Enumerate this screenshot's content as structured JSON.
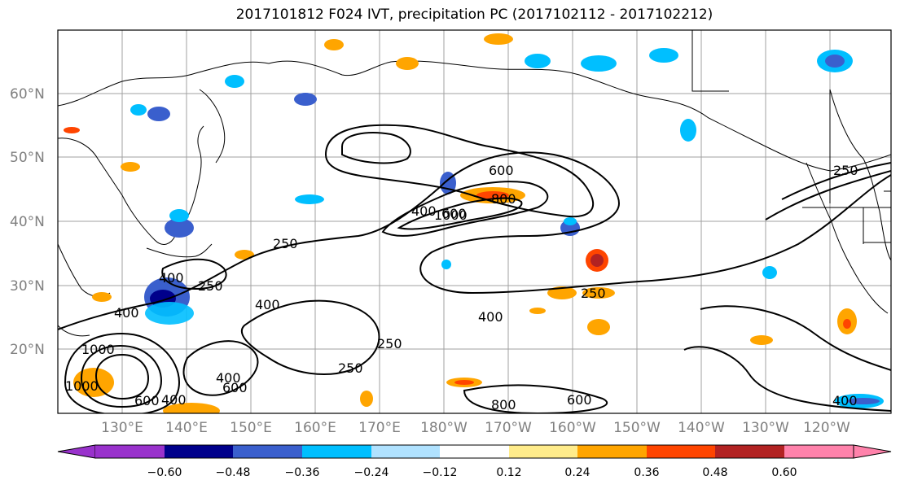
{
  "title": "2017101812 F024 IVT, precipitation PC (2017102112 - 2017102212)",
  "lat_labels": [
    "60°N",
    "50°N",
    "40°N",
    "30°N",
    "20°N"
  ],
  "lon_labels": [
    "130°E",
    "140°E",
    "150°E",
    "160°E",
    "170°E",
    "180°W",
    "170°W",
    "160°W",
    "150°W",
    "140°W",
    "130°W",
    "120°W"
  ],
  "colorbar": {
    "colors": [
      "#9932cc",
      "#00008b",
      "#3a5fcd",
      "#00bfff",
      "#b0e2ff",
      "#ffffff",
      "#ffec8b",
      "#ffa500",
      "#ff4500",
      "#b22222",
      "#ff82ab"
    ],
    "ticks": [
      "−0.60",
      "−0.48",
      "−0.36",
      "−0.24",
      "−0.12",
      "0.12",
      "0.24",
      "0.36",
      "0.48",
      "0.60"
    ]
  },
  "contour_labels": [
    "400",
    "250",
    "400",
    "400",
    "250",
    "400",
    "600",
    "600",
    "800",
    "1000",
    "250",
    "400",
    "250",
    "600",
    "800",
    "600",
    "250",
    "250",
    "400",
    "400",
    "400",
    "600",
    "1000",
    "1000"
  ],
  "contour_label_levels": [
    "250",
    "400",
    "600",
    "800",
    "1000"
  ]
}
